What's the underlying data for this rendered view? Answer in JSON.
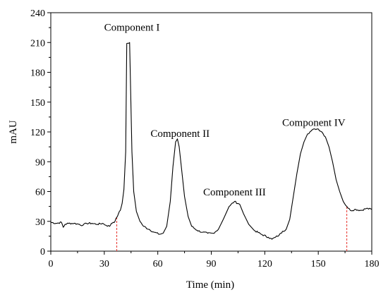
{
  "chart_data": {
    "type": "line",
    "xlabel": "Time (min)",
    "ylabel": "mAU",
    "xlim": [
      0,
      180
    ],
    "ylim": [
      0,
      240
    ],
    "xticks": [
      0,
      30,
      60,
      90,
      120,
      150,
      180
    ],
    "yticks": [
      0,
      30,
      60,
      90,
      120,
      150,
      180,
      210,
      240
    ],
    "grid": false,
    "line_color": "#000000",
    "marker_color": "#e8302a",
    "series": [
      {
        "values": [
          [
            0,
            29
          ],
          [
            3,
            28
          ],
          [
            6,
            29
          ],
          [
            7,
            24
          ],
          [
            8,
            27
          ],
          [
            10,
            28
          ],
          [
            13,
            28
          ],
          [
            16,
            27
          ],
          [
            18,
            26
          ],
          [
            20,
            28
          ],
          [
            23,
            28
          ],
          [
            26,
            27
          ],
          [
            29,
            28
          ],
          [
            31,
            26
          ],
          [
            33,
            25
          ],
          [
            34,
            28
          ],
          [
            35,
            29
          ],
          [
            36,
            30
          ],
          [
            37,
            34
          ],
          [
            38,
            38
          ],
          [
            39,
            41
          ],
          [
            40,
            48
          ],
          [
            41,
            62
          ],
          [
            42,
            100
          ],
          [
            42.6,
            209
          ],
          [
            44.2,
            210
          ],
          [
            44.8,
            160
          ],
          [
            45.5,
            100
          ],
          [
            46.5,
            60
          ],
          [
            48,
            40
          ],
          [
            50,
            30
          ],
          [
            52,
            25
          ],
          [
            55,
            22
          ],
          [
            58,
            19
          ],
          [
            61,
            17
          ],
          [
            63,
            18
          ],
          [
            65,
            25
          ],
          [
            67,
            50
          ],
          [
            68.5,
            85
          ],
          [
            70,
            110
          ],
          [
            71,
            113
          ],
          [
            72,
            105
          ],
          [
            73.5,
            80
          ],
          [
            75,
            55
          ],
          [
            77,
            35
          ],
          [
            79,
            25
          ],
          [
            82,
            21
          ],
          [
            85,
            19
          ],
          [
            88,
            18
          ],
          [
            91,
            18
          ],
          [
            94,
            22
          ],
          [
            97,
            33
          ],
          [
            100,
            45
          ],
          [
            103,
            50
          ],
          [
            106,
            47
          ],
          [
            108,
            38
          ],
          [
            111,
            27
          ],
          [
            114,
            21
          ],
          [
            118,
            17
          ],
          [
            122,
            14
          ],
          [
            124,
            12
          ],
          [
            126,
            14
          ],
          [
            128,
            16
          ],
          [
            130,
            20
          ],
          [
            132,
            22
          ],
          [
            134,
            32
          ],
          [
            136,
            55
          ],
          [
            138,
            78
          ],
          [
            140,
            98
          ],
          [
            142,
            110
          ],
          [
            144,
            118
          ],
          [
            146,
            121
          ],
          [
            148,
            123
          ],
          [
            150,
            123
          ],
          [
            152,
            120
          ],
          [
            154,
            115
          ],
          [
            156,
            105
          ],
          [
            158,
            90
          ],
          [
            160,
            72
          ],
          [
            162,
            60
          ],
          [
            164,
            50
          ],
          [
            166,
            45
          ],
          [
            168,
            41
          ],
          [
            171,
            42
          ],
          [
            174,
            41
          ],
          [
            177,
            43
          ],
          [
            180,
            42
          ]
        ]
      }
    ],
    "annotations": [
      {
        "text": "Component I",
        "x": 45.5,
        "y": 222
      },
      {
        "text": "Component II",
        "x": 72.5,
        "y": 115
      },
      {
        "text": "Component III",
        "x": 103,
        "y": 56
      },
      {
        "text": "Component IV",
        "x": 147.5,
        "y": 126
      }
    ],
    "markers": [
      37,
      166
    ]
  }
}
